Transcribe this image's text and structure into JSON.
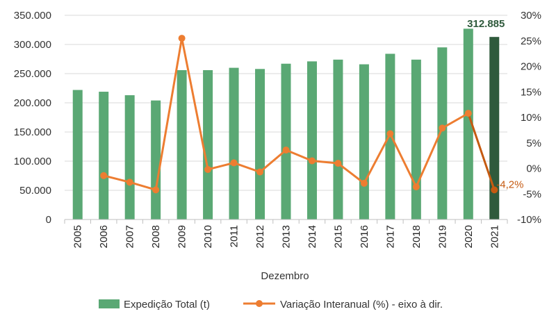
{
  "chart_data": {
    "type": "bar+line",
    "xlabel": "Dezembro",
    "categories": [
      "2005",
      "2006",
      "2007",
      "2008",
      "2009",
      "2010",
      "2011",
      "2012",
      "2013",
      "2014",
      "2015",
      "2016",
      "2017",
      "2018",
      "2019",
      "2020",
      "2021"
    ],
    "series": [
      {
        "name": "Expedição Total (t)",
        "type": "bar",
        "axis": "left",
        "color": "#5aa874",
        "highlight_color": "#2f5a3c",
        "values": [
          222000,
          219000,
          213000,
          204000,
          256000,
          256000,
          260000,
          258000,
          267000,
          271000,
          274000,
          266000,
          284000,
          274000,
          295000,
          327000,
          312885
        ]
      },
      {
        "name": "Variação Interanual (%) - eixo à dir.",
        "type": "line",
        "axis": "right",
        "color": "#ed7d31",
        "highlight_color": "#c55a11",
        "values": [
          null,
          -1.4,
          -2.7,
          -4.2,
          25.5,
          -0.2,
          1.1,
          -0.7,
          3.6,
          1.5,
          1.0,
          -2.9,
          6.8,
          -3.6,
          7.9,
          10.8,
          -4.2
        ]
      }
    ],
    "y_left": {
      "ylim": [
        0,
        350000
      ],
      "ticks": [
        "0",
        "50.000",
        "100.000",
        "150.000",
        "200.000",
        "250.000",
        "300.000",
        "350.000"
      ]
    },
    "y_right": {
      "ylim": [
        -10,
        30
      ],
      "ticks": [
        "-10%",
        "-5%",
        "0%",
        "5%",
        "10%",
        "15%",
        "20%",
        "25%",
        "30%"
      ]
    },
    "annotations": {
      "last_bar_label": "312.885",
      "last_pct_label": "-4,2%"
    },
    "legend_position": "bottom"
  }
}
